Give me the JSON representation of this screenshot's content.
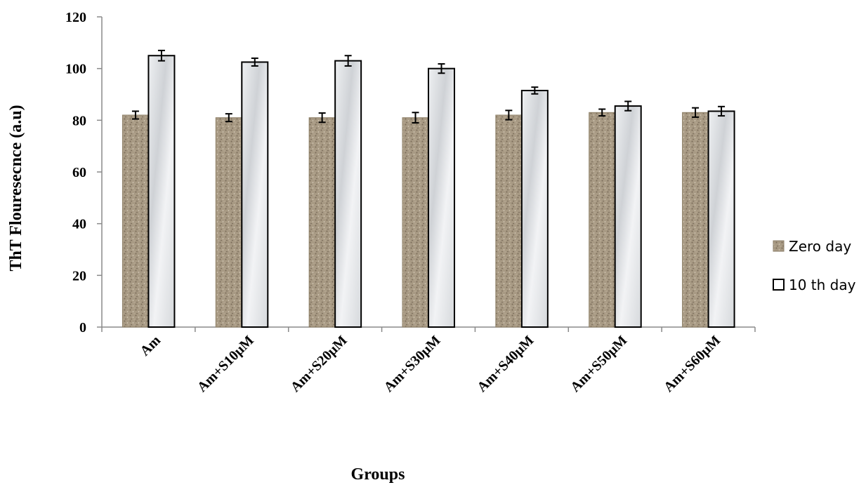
{
  "chart_data": {
    "type": "bar",
    "title": "",
    "xlabel": "Groups",
    "ylabel": "ThT Flouresecnce (a.u)",
    "ylim": [
      0,
      120
    ],
    "yticks": [
      "0",
      "20",
      "40",
      "60",
      "80",
      "100",
      "120"
    ],
    "categories": [
      "Am",
      "Am+S10µM",
      "Am+S20µM",
      "Am+S30µM",
      "Am+S40µM",
      "Am+S50µM",
      "Am+S60µM"
    ],
    "series": [
      {
        "name": "Zero day",
        "values": [
          82,
          81,
          81,
          81,
          82,
          83,
          83
        ],
        "errors": [
          1.5,
          1.5,
          1.8,
          2.0,
          1.8,
          1.3,
          1.8
        ],
        "color": "#a89a84"
      },
      {
        "name": "10 th day",
        "values": [
          105,
          102.5,
          103,
          100,
          91.5,
          85.5,
          83.5
        ],
        "errors": [
          2.0,
          1.5,
          2.0,
          1.8,
          1.3,
          1.8,
          1.8
        ],
        "color": "#e4e6e8"
      }
    ],
    "grid": false,
    "legend_position": "right"
  }
}
